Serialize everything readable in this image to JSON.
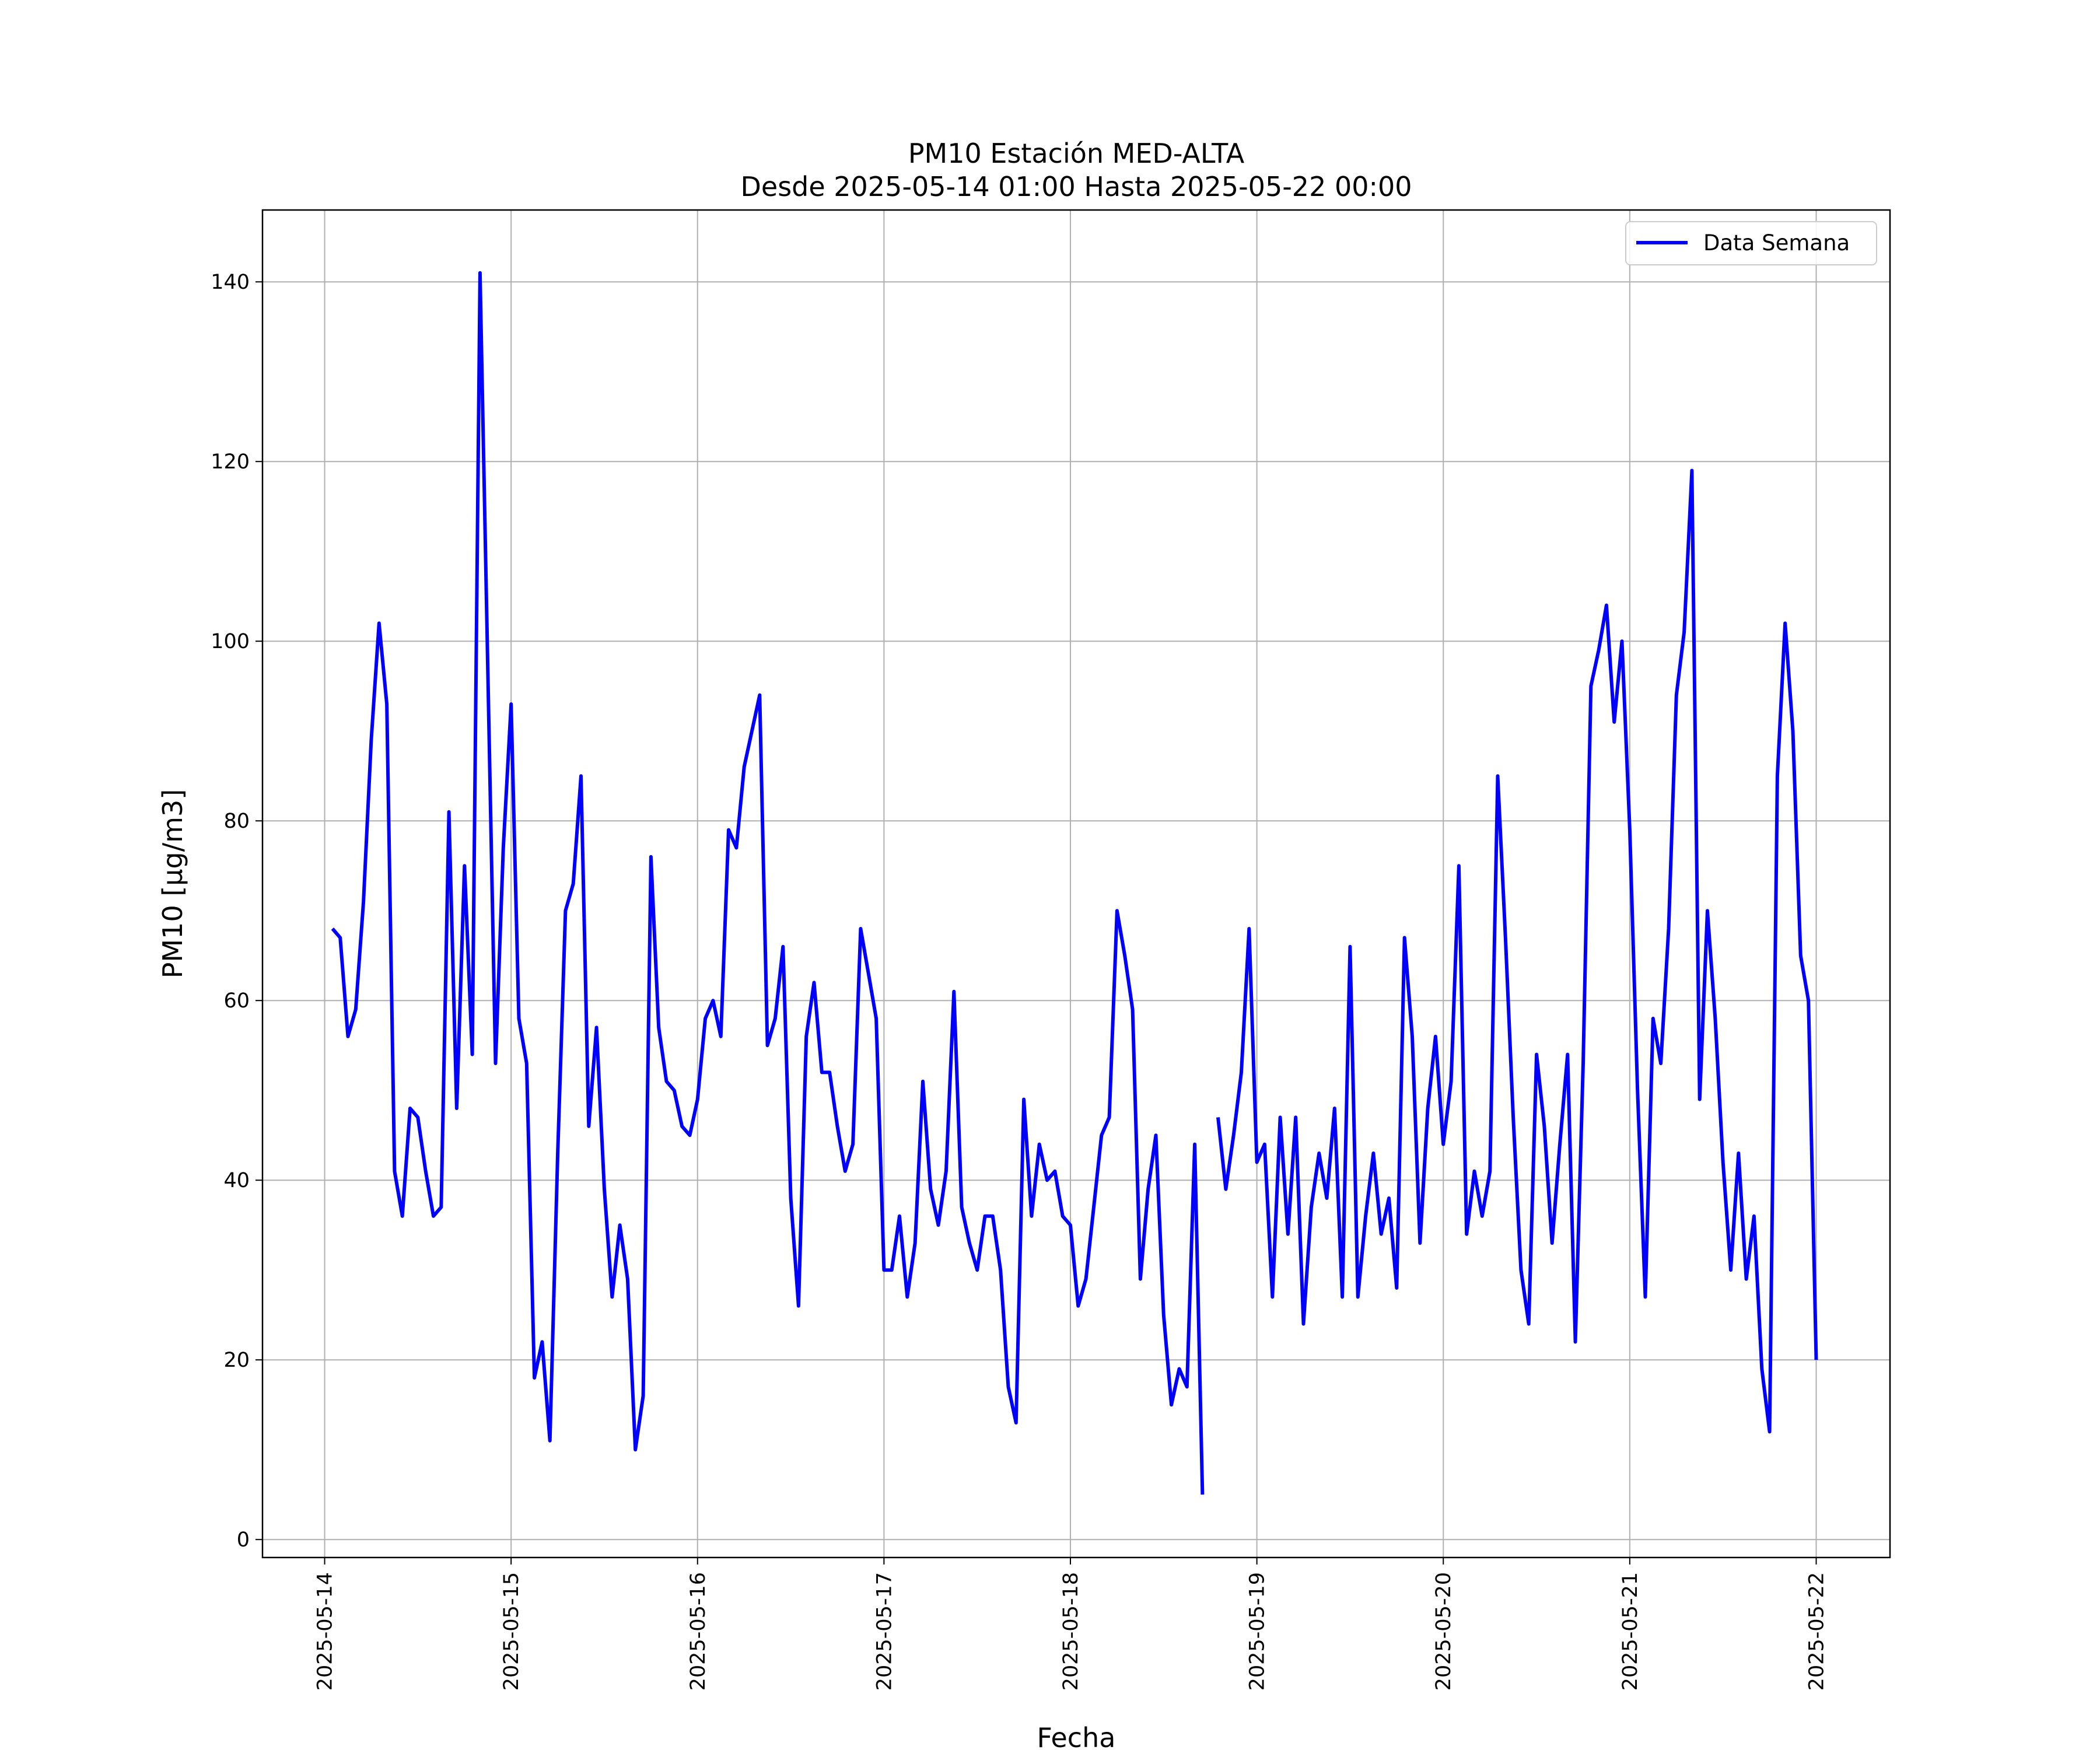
{
  "chart_data": {
    "type": "line",
    "title": "PM10 Estación MED-ALTA",
    "subtitle": "Desde 2025-05-14 01:00 Hasta 2025-05-22 00:00",
    "xlabel": "Fecha",
    "ylabel": "PM10 [μg/m3]",
    "xlim": [
      "2025-05-13 16:00",
      "2025-05-22 09:30"
    ],
    "ylim": [
      -2,
      148
    ],
    "x_ticks": [
      "2025-05-14",
      "2025-05-15",
      "2025-05-16",
      "2025-05-17",
      "2025-05-18",
      "2025-05-19",
      "2025-05-20",
      "2025-05-21",
      "2025-05-22"
    ],
    "y_ticks": [
      0,
      20,
      40,
      60,
      80,
      100,
      120,
      140
    ],
    "grid": true,
    "legend_position": "top-right",
    "series": [
      {
        "name": "Data Semana",
        "color": "#0000ff",
        "x_start": "2025-05-14 01:00",
        "x_step_hours": 1,
        "values": [
          68,
          67,
          56,
          59,
          71,
          89,
          102,
          93,
          41,
          36,
          48,
          47,
          41,
          36,
          37,
          81,
          48,
          75,
          54,
          141,
          97,
          53,
          77,
          93,
          58,
          53,
          18,
          22,
          11,
          43,
          70,
          73,
          85,
          46,
          57,
          39,
          27,
          35,
          29,
          10,
          16,
          76,
          57,
          51,
          50,
          46,
          45,
          49,
          58,
          60,
          56,
          79,
          77,
          86,
          90,
          94,
          55,
          58,
          66,
          38,
          26,
          56,
          62,
          52,
          52,
          46,
          41,
          44,
          68,
          63,
          58,
          30,
          30,
          36,
          27,
          33,
          51,
          39,
          35,
          41,
          61,
          37,
          33,
          30,
          36,
          36,
          30,
          17,
          13,
          49,
          36,
          44,
          40,
          41,
          36,
          35,
          26,
          29,
          37,
          45,
          47,
          70,
          65,
          59,
          29,
          39,
          45,
          25,
          15,
          19,
          17,
          44,
          5,
          null,
          47,
          39,
          45,
          52,
          68,
          42,
          44,
          27,
          47,
          34,
          47,
          24,
          37,
          43,
          38,
          48,
          27,
          66,
          27,
          36,
          43,
          34,
          38,
          28,
          67,
          56,
          33,
          48,
          56,
          44,
          51,
          75,
          34,
          41,
          36,
          41,
          85,
          67,
          47,
          30,
          24,
          54,
          46,
          33,
          44,
          54,
          22,
          53,
          95,
          99,
          104,
          91,
          100,
          79,
          50,
          27,
          58,
          53,
          68,
          94,
          101,
          119,
          49,
          70,
          58,
          42,
          30,
          43,
          29,
          36,
          19,
          12,
          85,
          102,
          90,
          65,
          60,
          20
        ]
      }
    ]
  }
}
